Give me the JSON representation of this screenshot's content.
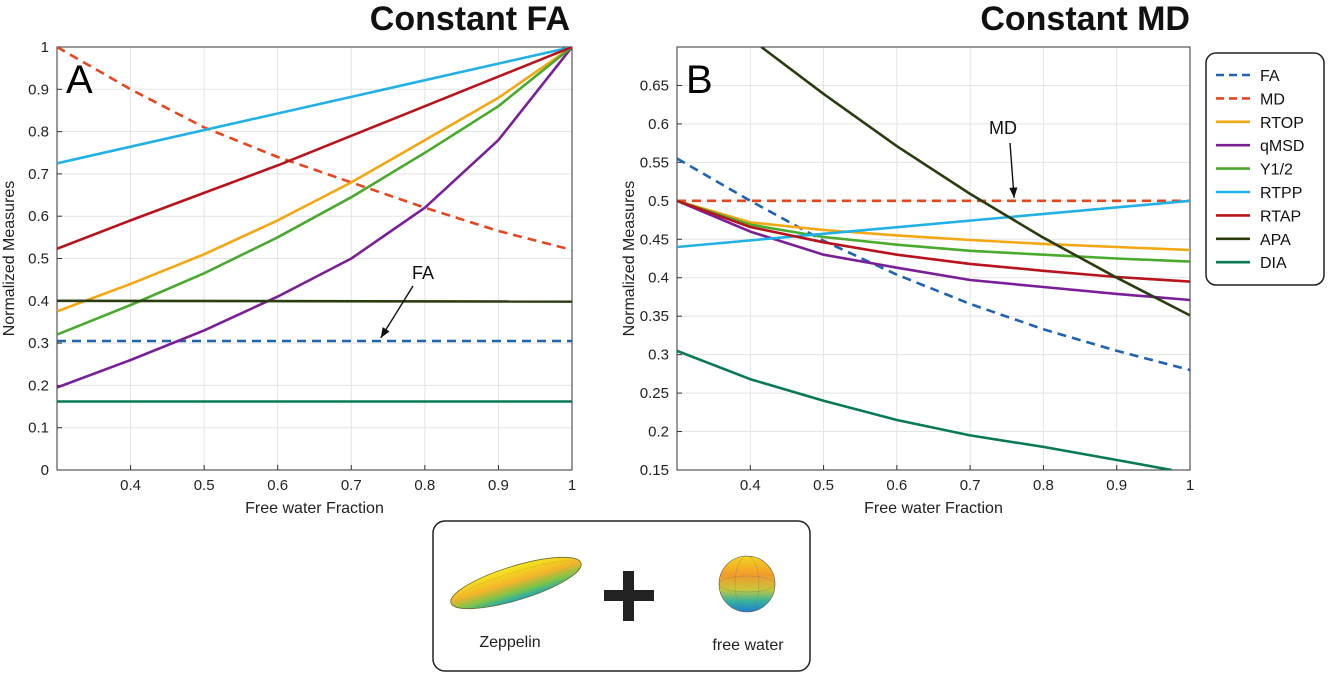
{
  "chart_data": [
    {
      "type": "line",
      "title": "Constant FA",
      "panel_label": "A",
      "xlabel": "Free water Fraction",
      "ylabel": "Normalized Measures",
      "xlim": [
        0.3,
        1.0
      ],
      "ylim": [
        0,
        1.0
      ],
      "grid": true,
      "xticks": [
        "0.4",
        "0.5",
        "0.6",
        "0.7",
        "0.8",
        "0.9",
        "1"
      ],
      "yticks": [
        "0",
        "0.1",
        "0.2",
        "0.3",
        "0.4",
        "0.5",
        "0.6",
        "0.7",
        "0.8",
        "0.9",
        "1"
      ],
      "annotation": {
        "text": "FA",
        "target": [
          0.74,
          0.305
        ]
      },
      "series": [
        {
          "name": "FA",
          "color": "#1f63b4",
          "dash": true,
          "x": [
            0.3,
            1.0
          ],
          "y": [
            0.305,
            0.305
          ]
        },
        {
          "name": "MD",
          "color": "#e8461e",
          "dash": true,
          "x": [
            0.3,
            0.4,
            0.5,
            0.6,
            0.7,
            0.8,
            0.9,
            1.0
          ],
          "y": [
            1.0,
            0.9,
            0.81,
            0.74,
            0.68,
            0.62,
            0.565,
            0.52
          ]
        },
        {
          "name": "RTOP",
          "color": "#f4a712",
          "x": [
            0.3,
            0.4,
            0.5,
            0.6,
            0.7,
            0.8,
            0.9,
            1.0
          ],
          "y": [
            0.375,
            0.44,
            0.51,
            0.59,
            0.68,
            0.78,
            0.88,
            1.0
          ]
        },
        {
          "name": "qMSD",
          "color": "#7b1f99",
          "x": [
            0.3,
            0.4,
            0.5,
            0.6,
            0.7,
            0.8,
            0.9,
            1.0
          ],
          "y": [
            0.195,
            0.26,
            0.33,
            0.41,
            0.5,
            0.62,
            0.78,
            1.0
          ]
        },
        {
          "name": "Υ1/2",
          "color": "#4aaa2e",
          "x": [
            0.3,
            0.4,
            0.5,
            0.6,
            0.7,
            0.8,
            0.9,
            1.0
          ],
          "y": [
            0.32,
            0.39,
            0.465,
            0.55,
            0.645,
            0.75,
            0.86,
            1.0
          ]
        },
        {
          "name": "RTPP",
          "color": "#22b1e6",
          "x": [
            0.3,
            1.0
          ],
          "y": [
            0.725,
            1.0
          ]
        },
        {
          "name": "RTAP",
          "color": "#b8141d",
          "x": [
            0.3,
            0.4,
            0.5,
            0.6,
            0.7,
            0.8,
            0.9,
            1.0
          ],
          "y": [
            0.523,
            0.59,
            0.655,
            0.72,
            0.79,
            0.86,
            0.93,
            1.0
          ]
        },
        {
          "name": "APA",
          "color": "#2a3d0f",
          "x": [
            0.3,
            1.0
          ],
          "y": [
            0.4,
            0.398
          ]
        },
        {
          "name": "DIA",
          "color": "#087a55",
          "x": [
            0.3,
            1.0
          ],
          "y": [
            0.162,
            0.162
          ]
        }
      ]
    },
    {
      "type": "line",
      "title": "Constant MD",
      "panel_label": "B",
      "xlabel": "Free water Fraction",
      "ylabel": "Normalized Measures",
      "xlim": [
        0.3,
        1.0
      ],
      "ylim": [
        0.15,
        0.7
      ],
      "grid": true,
      "xticks": [
        "0.4",
        "0.5",
        "0.6",
        "0.7",
        "0.8",
        "0.9",
        "1"
      ],
      "yticks": [
        "0.15",
        "0.2",
        "0.25",
        "0.3",
        "0.35",
        "0.4",
        "0.45",
        "0.5",
        "0.55",
        "0.6",
        "0.65"
      ],
      "annotation": {
        "text": "MD",
        "target": [
          0.76,
          0.5
        ]
      },
      "series": [
        {
          "name": "FA",
          "color": "#1f63b4",
          "dash": true,
          "x": [
            0.3,
            0.4,
            0.5,
            0.6,
            0.7,
            0.8,
            0.9,
            1.0
          ],
          "y": [
            0.555,
            0.5,
            0.448,
            0.404,
            0.366,
            0.333,
            0.305,
            0.28
          ]
        },
        {
          "name": "MD",
          "color": "#e8461e",
          "dash": true,
          "x": [
            0.3,
            1.0
          ],
          "y": [
            0.5,
            0.5
          ]
        },
        {
          "name": "RTOP",
          "color": "#f4a712",
          "x": [
            0.3,
            0.4,
            0.5,
            0.6,
            0.7,
            0.8,
            0.9,
            1.0
          ],
          "y": [
            0.5,
            0.472,
            0.462,
            0.455,
            0.449,
            0.444,
            0.44,
            0.436
          ]
        },
        {
          "name": "qMSD",
          "color": "#7b1f99",
          "x": [
            0.3,
            0.4,
            0.5,
            0.6,
            0.7,
            0.8,
            0.9,
            1.0
          ],
          "y": [
            0.5,
            0.46,
            0.43,
            0.413,
            0.397,
            0.388,
            0.379,
            0.371
          ]
        },
        {
          "name": "Υ1/2",
          "color": "#4aaa2e",
          "x": [
            0.3,
            0.4,
            0.5,
            0.6,
            0.7,
            0.8,
            0.9,
            1.0
          ],
          "y": [
            0.5,
            0.469,
            0.453,
            0.443,
            0.435,
            0.43,
            0.425,
            0.421
          ]
        },
        {
          "name": "RTPP",
          "color": "#22b1e6",
          "x": [
            0.3,
            1.0
          ],
          "y": [
            0.44,
            0.5
          ]
        },
        {
          "name": "RTAP",
          "color": "#b8141d",
          "x": [
            0.3,
            0.4,
            0.5,
            0.6,
            0.7,
            0.8,
            0.9,
            1.0
          ],
          "y": [
            0.5,
            0.466,
            0.446,
            0.43,
            0.418,
            0.409,
            0.401,
            0.395
          ]
        },
        {
          "name": "APA",
          "color": "#2a3d0f",
          "x": [
            0.415,
            0.5,
            0.6,
            0.7,
            0.8,
            0.9,
            1.0
          ],
          "y": [
            0.7,
            0.639,
            0.571,
            0.509,
            0.452,
            0.4,
            0.351
          ]
        },
        {
          "name": "DIA",
          "color": "#087a55",
          "x": [
            0.3,
            0.4,
            0.5,
            0.6,
            0.7,
            0.8,
            0.9,
            0.975
          ],
          "y": [
            0.305,
            0.268,
            0.24,
            0.215,
            0.195,
            0.18,
            0.163,
            0.15
          ]
        }
      ]
    }
  ],
  "legend": {
    "position": "right",
    "entries": [
      {
        "label": "FA",
        "color": "#1f63b4",
        "dash": true
      },
      {
        "label": "MD",
        "color": "#e8461e",
        "dash": true
      },
      {
        "label": "RTOP",
        "color": "#f4a712",
        "dash": false
      },
      {
        "label": "qMSD",
        "color": "#7b1f99",
        "dash": false
      },
      {
        "label": "Υ1/2",
        "color": "#4aaa2e",
        "dash": false
      },
      {
        "label": "RTPP",
        "color": "#22b1e6",
        "dash": false
      },
      {
        "label": "RTAP",
        "color": "#b8141d",
        "dash": false
      },
      {
        "label": "APA",
        "color": "#2a3d0f",
        "dash": false
      },
      {
        "label": "DIA",
        "color": "#087a55",
        "dash": false
      }
    ]
  },
  "inset": {
    "left_label": "Zeppelin",
    "right_label": "free water",
    "operator": "+"
  }
}
